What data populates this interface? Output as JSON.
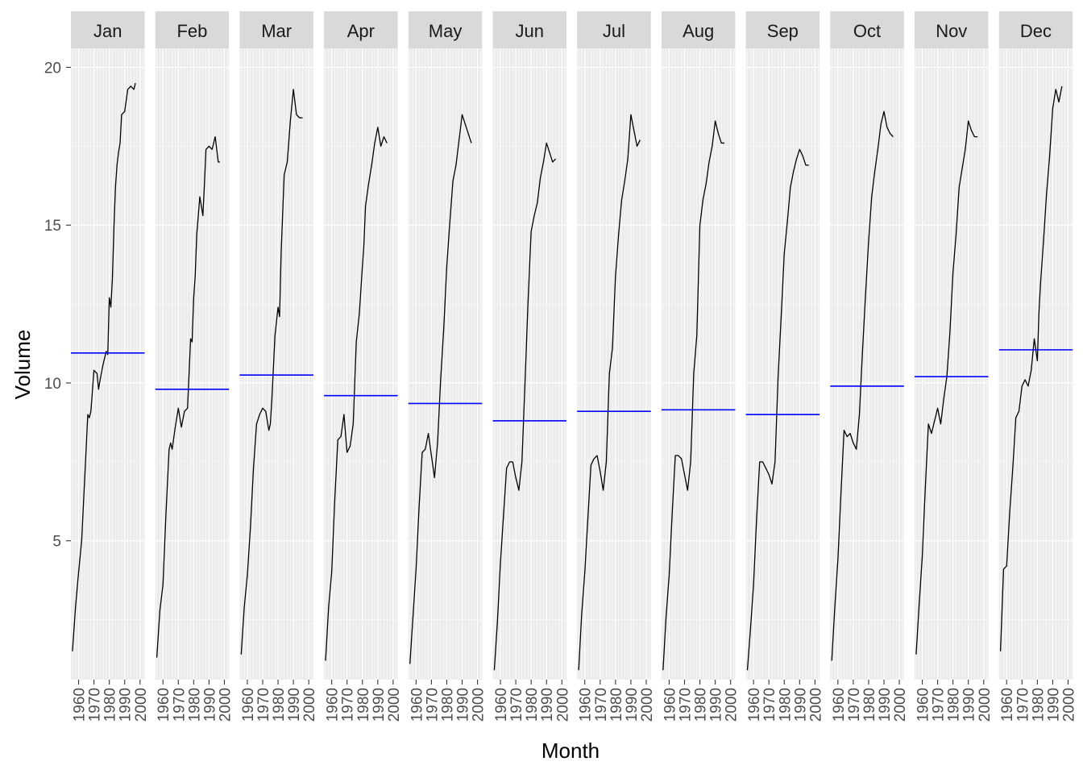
{
  "chart_data": {
    "type": "line",
    "subtype": "seasonal-subseries",
    "xlabel": "Month",
    "ylabel": "Volume",
    "ylim": [
      0.6,
      20.6
    ],
    "yticks": [
      5,
      10,
      15,
      20
    ],
    "xlim": [
      1955,
      2003
    ],
    "xticks": [
      "1960",
      "1970",
      "1980",
      "1990",
      "2000"
    ],
    "grid": true,
    "colors": {
      "panel_background": "#EBEBEB",
      "strip_background": "#D9D9D9",
      "grid": "#FFFFFF",
      "series_line": "#000000",
      "mean_line": "#0000FF"
    },
    "panels": [
      {
        "month": "Jan",
        "mean": 10.95,
        "x": [
          1956,
          1958,
          1960,
          1962,
          1964,
          1966,
          1967,
          1968,
          1970,
          1972,
          1973,
          1974,
          1976,
          1978,
          1979,
          1980,
          1981,
          1982,
          1983,
          1984,
          1985,
          1986,
          1987,
          1988,
          1990,
          1992,
          1994,
          1996,
          1997
        ],
        "y": [
          1.5,
          2.9,
          4.0,
          5.0,
          7.0,
          9.0,
          8.9,
          9.1,
          10.4,
          10.3,
          9.8,
          10.1,
          10.6,
          11.0,
          10.9,
          12.7,
          12.4,
          13.3,
          14.9,
          16.2,
          16.9,
          17.3,
          17.6,
          18.5,
          18.6,
          19.3,
          19.4,
          19.3,
          19.5
        ]
      },
      {
        "month": "Feb",
        "mean": 9.8,
        "x": [
          1956,
          1958,
          1960,
          1962,
          1964,
          1965,
          1966,
          1968,
          1970,
          1971,
          1972,
          1974,
          1976,
          1978,
          1979,
          1980,
          1981,
          1982,
          1984,
          1986,
          1987,
          1988,
          1990,
          1992,
          1994,
          1996,
          1997
        ],
        "y": [
          1.3,
          2.8,
          3.6,
          5.9,
          7.9,
          8.1,
          7.9,
          8.6,
          9.2,
          8.9,
          8.6,
          9.1,
          9.2,
          11.4,
          11.3,
          12.7,
          13.4,
          14.7,
          15.9,
          15.3,
          16.3,
          17.4,
          17.5,
          17.4,
          17.8,
          17.0,
          17.0
        ]
      },
      {
        "month": "Mar",
        "mean": 10.25,
        "x": [
          1956,
          1958,
          1960,
          1962,
          1964,
          1966,
          1968,
          1970,
          1972,
          1974,
          1975,
          1976,
          1978,
          1980,
          1981,
          1982,
          1984,
          1986,
          1988,
          1990,
          1992,
          1994,
          1996
        ],
        "y": [
          1.4,
          2.9,
          3.9,
          5.4,
          7.3,
          8.7,
          9.0,
          9.2,
          9.1,
          8.5,
          8.7,
          9.5,
          11.5,
          12.4,
          12.1,
          14.1,
          16.6,
          17.0,
          18.3,
          19.3,
          18.5,
          18.4,
          18.4
        ]
      },
      {
        "month": "Apr",
        "mean": 9.6,
        "x": [
          1956,
          1958,
          1960,
          1962,
          1964,
          1966,
          1968,
          1970,
          1972,
          1974,
          1976,
          1978,
          1980,
          1981,
          1982,
          1984,
          1986,
          1988,
          1990,
          1992,
          1994,
          1996
        ],
        "y": [
          1.2,
          2.9,
          4.0,
          6.3,
          8.2,
          8.3,
          9.0,
          7.8,
          8.0,
          8.7,
          11.3,
          12.2,
          13.7,
          14.4,
          15.6,
          16.3,
          16.9,
          17.6,
          18.1,
          17.5,
          17.8,
          17.6
        ]
      },
      {
        "month": "May",
        "mean": 9.35,
        "x": [
          1956,
          1958,
          1960,
          1962,
          1964,
          1966,
          1968,
          1970,
          1972,
          1974,
          1976,
          1978,
          1980,
          1982,
          1984,
          1986,
          1988,
          1990,
          1992,
          1994,
          1996
        ],
        "y": [
          1.1,
          2.6,
          4.1,
          6.1,
          7.8,
          7.9,
          8.4,
          7.7,
          7.0,
          8.1,
          10.1,
          11.7,
          13.7,
          15.1,
          16.4,
          16.9,
          17.7,
          18.5,
          18.2,
          17.9,
          17.6
        ]
      },
      {
        "month": "Jun",
        "mean": 8.8,
        "x": [
          1956,
          1958,
          1960,
          1962,
          1964,
          1966,
          1968,
          1970,
          1972,
          1974,
          1976,
          1978,
          1980,
          1982,
          1984,
          1986,
          1988,
          1990,
          1992,
          1994,
          1996
        ],
        "y": [
          0.9,
          2.4,
          4.3,
          5.8,
          7.3,
          7.5,
          7.5,
          7.0,
          6.6,
          7.5,
          10.0,
          12.6,
          14.8,
          15.3,
          15.7,
          16.5,
          17.0,
          17.6,
          17.3,
          17.0,
          17.1
        ]
      },
      {
        "month": "Jul",
        "mean": 9.1,
        "x": [
          1956,
          1958,
          1960,
          1962,
          1964,
          1966,
          1968,
          1970,
          1972,
          1974,
          1976,
          1978,
          1980,
          1982,
          1984,
          1986,
          1988,
          1990,
          1992,
          1994,
          1996
        ],
        "y": [
          0.9,
          2.7,
          4.0,
          5.7,
          7.4,
          7.6,
          7.7,
          7.2,
          6.6,
          7.5,
          10.3,
          11.1,
          13.4,
          14.7,
          15.8,
          16.4,
          17.1,
          18.5,
          18.0,
          17.5,
          17.7
        ]
      },
      {
        "month": "Aug",
        "mean": 9.15,
        "x": [
          1956,
          1958,
          1960,
          1962,
          1964,
          1966,
          1968,
          1970,
          1972,
          1974,
          1976,
          1978,
          1980,
          1982,
          1984,
          1986,
          1988,
          1990,
          1992,
          1994,
          1996
        ],
        "y": [
          0.9,
          2.6,
          3.9,
          5.9,
          7.7,
          7.7,
          7.6,
          7.1,
          6.6,
          7.5,
          10.3,
          11.5,
          15.0,
          15.8,
          16.3,
          17.0,
          17.5,
          18.3,
          17.9,
          17.6,
          17.6
        ]
      },
      {
        "month": "Sep",
        "mean": 9.0,
        "x": [
          1956,
          1958,
          1960,
          1962,
          1964,
          1966,
          1968,
          1970,
          1972,
          1974,
          1976,
          1978,
          1980,
          1982,
          1984,
          1986,
          1988,
          1990,
          1992,
          1994,
          1996
        ],
        "y": [
          0.9,
          2.2,
          3.6,
          5.7,
          7.5,
          7.5,
          7.3,
          7.1,
          6.8,
          7.5,
          10.2,
          12.1,
          14.1,
          15.1,
          16.2,
          16.7,
          17.1,
          17.4,
          17.2,
          16.9,
          16.9
        ]
      },
      {
        "month": "Oct",
        "mean": 9.9,
        "x": [
          1956,
          1958,
          1960,
          1962,
          1964,
          1966,
          1968,
          1970,
          1972,
          1974,
          1976,
          1978,
          1980,
          1982,
          1984,
          1986,
          1988,
          1990,
          1992,
          1994,
          1996
        ],
        "y": [
          1.2,
          2.9,
          4.4,
          6.5,
          8.5,
          8.3,
          8.4,
          8.1,
          7.9,
          9.0,
          11.0,
          12.8,
          14.5,
          15.9,
          16.7,
          17.4,
          18.2,
          18.6,
          18.1,
          17.9,
          17.8
        ]
      },
      {
        "month": "Nov",
        "mean": 10.2,
        "x": [
          1956,
          1958,
          1960,
          1962,
          1964,
          1966,
          1968,
          1970,
          1972,
          1974,
          1976,
          1978,
          1980,
          1982,
          1984,
          1986,
          1988,
          1990,
          1992,
          1994,
          1996
        ],
        "y": [
          1.4,
          3.0,
          4.5,
          6.7,
          8.7,
          8.4,
          8.8,
          9.2,
          8.7,
          9.5,
          10.2,
          11.6,
          13.5,
          14.7,
          16.2,
          16.8,
          17.4,
          18.3,
          18.0,
          17.8,
          17.8
        ]
      },
      {
        "month": "Dec",
        "mean": 11.05,
        "x": [
          1956,
          1958,
          1960,
          1962,
          1964,
          1966,
          1968,
          1970,
          1972,
          1974,
          1976,
          1978,
          1980,
          1981,
          1982,
          1984,
          1986,
          1988,
          1990,
          1992,
          1994,
          1996
        ],
        "y": [
          1.5,
          4.1,
          4.2,
          5.9,
          7.3,
          8.9,
          9.1,
          9.9,
          10.1,
          9.9,
          10.4,
          11.4,
          10.7,
          12.2,
          13.1,
          14.5,
          16.0,
          17.2,
          18.7,
          19.3,
          18.9,
          19.4
        ]
      }
    ]
  }
}
